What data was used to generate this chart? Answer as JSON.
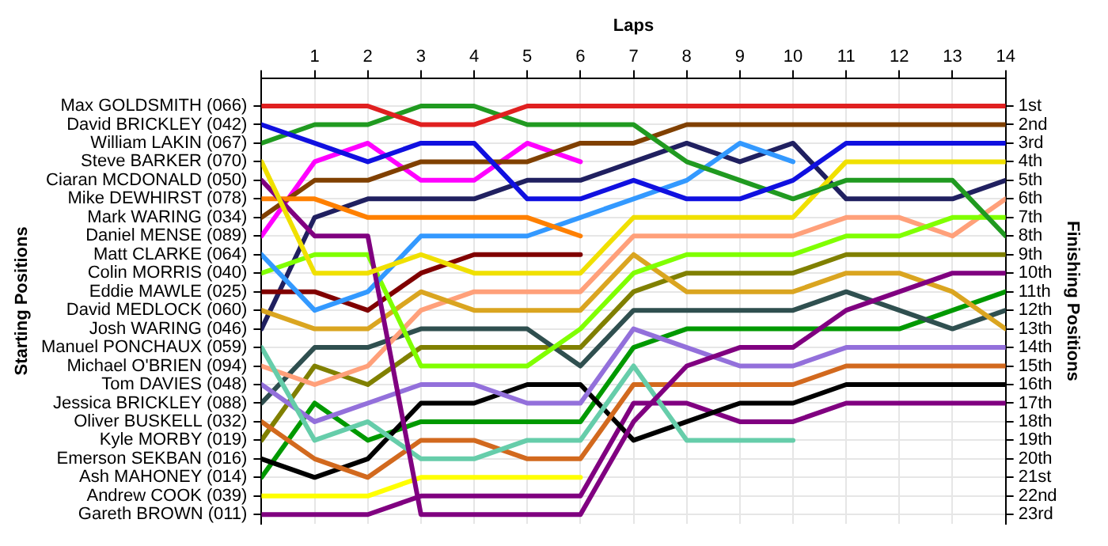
{
  "chart_data": {
    "type": "line",
    "xlabel": "Laps",
    "ylabel": "Finishing Positions",
    "x": [
      0,
      1,
      2,
      3,
      4,
      5,
      6,
      7,
      8,
      9,
      10,
      11,
      12,
      13,
      14
    ],
    "xlim": [
      0,
      14
    ],
    "xticks": [
      {
        "value": 0,
        "label": null
      },
      1,
      2,
      3,
      4,
      5,
      6,
      7,
      8,
      9,
      10,
      11,
      12,
      13,
      14
    ],
    "ylim": [
      23.5,
      -0.5
    ],
    "yticks": [
      {
        "value": 1,
        "label": "1st"
      },
      {
        "value": 2,
        "label": "2nd"
      },
      {
        "value": 3,
        "label": "3rd"
      },
      {
        "value": 4,
        "label": "4th"
      },
      {
        "value": 5,
        "label": "5th"
      },
      {
        "value": 6,
        "label": "6th"
      },
      {
        "value": 7,
        "label": "7th"
      },
      {
        "value": 8,
        "label": "8th"
      },
      {
        "value": 9,
        "label": "9th"
      },
      {
        "value": 10,
        "label": "10th"
      },
      {
        "value": 11,
        "label": "11th"
      },
      {
        "value": 12,
        "label": "12th"
      },
      {
        "value": 13,
        "label": "13th"
      },
      {
        "value": 14,
        "label": "14th"
      },
      {
        "value": 15,
        "label": "15th"
      },
      {
        "value": 16,
        "label": "16th"
      },
      {
        "value": 17,
        "label": "17th"
      },
      {
        "value": 18,
        "label": "18th"
      },
      {
        "value": 19,
        "label": "19th"
      },
      {
        "value": 20,
        "label": "20th"
      },
      {
        "value": 21,
        "label": "21st"
      },
      {
        "value": 22,
        "label": "22nd"
      },
      {
        "value": 23,
        "label": "23rd"
      }
    ],
    "annotations": [
      "Starting Positions",
      "Max GOLDSMITH (066)",
      "David BRICKLEY (042)",
      "William LAKIN (067)",
      "Steve BARKER (070)",
      "Ciaran MCDONALD (050)",
      "Mike DEWHIRST (078)",
      "Mark WARING (034)",
      "Daniel MENSE (089)",
      "Matt CLARKE (064)",
      "Colin MORRIS (040)",
      "Eddie MAWLE (025)",
      "David MEDLOCK (060)",
      "Josh WARING (046)",
      "Manuel PONCHAUX (059)",
      "Michael O'BRIEN (094)",
      "Tom DAVIES (048)",
      "Jessica BRICKLEY (088)",
      "Oliver BUSKELL (032)",
      "Kyle MORBY (019)",
      "Emerson SEKBAN (016)",
      "Ash MAHONEY (014)",
      "Andrew COOK (039)",
      "Gareth BROWN (011)"
    ],
    "grid": true,
    "legend": false,
    "marker": "none",
    "line_style": "solid",
    "series": [
      {
        "color": "#e02020",
        "values": [
          1,
          1,
          1,
          2,
          2,
          1,
          1,
          1,
          1,
          1,
          1,
          1,
          1,
          1,
          1
        ]
      },
      {
        "color": "#1010e0",
        "values": [
          2,
          3,
          4,
          3,
          3,
          6,
          6,
          5,
          6,
          6,
          5,
          3,
          3,
          3,
          3
        ]
      },
      {
        "color": "#209a20",
        "values": [
          3,
          2,
          2,
          1,
          1,
          2,
          2,
          2,
          4,
          5,
          6,
          5,
          5,
          5,
          8
        ]
      },
      {
        "color": "#f0e000",
        "values": [
          4,
          10,
          10,
          9,
          10,
          10,
          10,
          7,
          7,
          7,
          7,
          4,
          4,
          4,
          4
        ]
      },
      {
        "color": "#800080",
        "values": [
          5,
          8,
          8,
          23,
          23,
          23,
          23,
          18,
          15,
          14,
          14,
          12,
          11,
          10,
          10
        ]
      },
      {
        "color": "#ff8000",
        "values": [
          6,
          6,
          7,
          7,
          7,
          7,
          8,
          null,
          null,
          null,
          null,
          null,
          null,
          null,
          null
        ]
      },
      {
        "color": "#804000",
        "values": [
          7,
          5,
          5,
          4,
          4,
          4,
          3,
          3,
          2,
          2,
          2,
          2,
          2,
          2,
          2
        ]
      },
      {
        "color": "#ff00ff",
        "values": [
          8,
          4,
          3,
          5,
          5,
          3,
          4,
          null,
          null,
          null,
          null,
          null,
          null,
          null,
          null
        ]
      },
      {
        "color": "#3399ff",
        "values": [
          9,
          12,
          11,
          8,
          8,
          8,
          7,
          6,
          5,
          3,
          4,
          null,
          null,
          null,
          null
        ]
      },
      {
        "color": "#80ff00",
        "values": [
          10,
          9,
          9,
          15,
          15,
          15,
          13,
          10,
          9,
          9,
          9,
          8,
          8,
          7,
          7
        ]
      },
      {
        "color": "#800000",
        "values": [
          11,
          11,
          12,
          10,
          9,
          9,
          9,
          null,
          null,
          null,
          null,
          null,
          null,
          null,
          null
        ]
      },
      {
        "color": "#daa520",
        "values": [
          12,
          13,
          13,
          11,
          12,
          12,
          12,
          9,
          11,
          11,
          11,
          10,
          10,
          11,
          13
        ]
      },
      {
        "color": "#202060",
        "values": [
          13,
          7,
          6,
          6,
          6,
          5,
          5,
          4,
          3,
          4,
          3,
          6,
          6,
          6,
          5
        ]
      },
      {
        "color": "#66cdaa",
        "values": [
          14,
          19,
          18,
          20,
          20,
          19,
          19,
          15,
          19,
          19,
          19,
          null,
          null,
          null,
          null
        ]
      },
      {
        "color": "#ffa07a",
        "values": [
          15,
          16,
          15,
          12,
          11,
          11,
          11,
          8,
          8,
          8,
          8,
          7,
          7,
          8,
          6
        ]
      },
      {
        "color": "#9370db",
        "values": [
          16,
          18,
          17,
          16,
          16,
          17,
          17,
          13,
          14,
          15,
          15,
          14,
          14,
          14,
          14
        ]
      },
      {
        "color": "#2f4f4f",
        "values": [
          17,
          14,
          14,
          13,
          13,
          13,
          15,
          12,
          12,
          12,
          12,
          11,
          12,
          13,
          12
        ]
      },
      {
        "color": "#d2691e",
        "values": [
          18,
          20,
          21,
          19,
          19,
          20,
          20,
          16,
          16,
          16,
          16,
          15,
          15,
          15,
          15
        ]
      },
      {
        "color": "#808000",
        "values": [
          19,
          15,
          16,
          14,
          14,
          14,
          14,
          11,
          10,
          10,
          10,
          9,
          9,
          9,
          9
        ]
      },
      {
        "color": "#000000",
        "values": [
          20,
          21,
          20,
          17,
          17,
          16,
          16,
          19,
          18,
          17,
          17,
          16,
          16,
          16,
          16
        ]
      },
      {
        "color": "#009900",
        "values": [
          21,
          17,
          19,
          18,
          18,
          18,
          18,
          14,
          13,
          13,
          13,
          13,
          13,
          12,
          11
        ]
      },
      {
        "color": "#ffff00",
        "values": [
          22,
          22,
          22,
          21,
          21,
          21,
          21,
          null,
          null,
          null,
          null,
          null,
          null,
          null,
          null
        ]
      },
      {
        "color": "#800080",
        "values": [
          23,
          23,
          23,
          22,
          22,
          22,
          22,
          17,
          17,
          18,
          18,
          17,
          17,
          17,
          17
        ]
      }
    ]
  }
}
